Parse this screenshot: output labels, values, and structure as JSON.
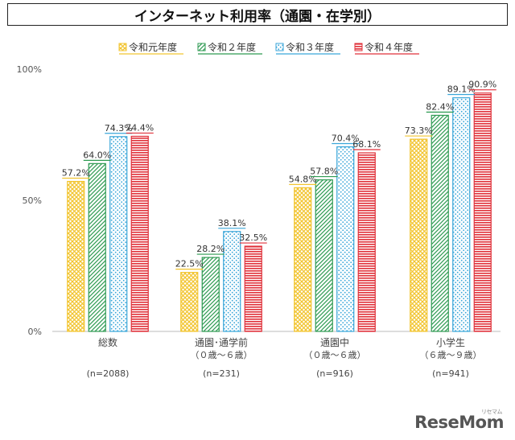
{
  "chart_data": {
    "type": "bar",
    "title": "インターネット利用率（通園・在学別）",
    "categories": [
      {
        "label": "総数",
        "label2": "",
        "n": "(n=2088)"
      },
      {
        "label": "通園･通学前",
        "label2": "（０歳～６歳）",
        "n": "(n=231)"
      },
      {
        "label": "通園中",
        "label2": "（０歳～６歳）",
        "n": "(n=916)"
      },
      {
        "label": "小学生",
        "label2": "（６歳～９歳）",
        "n": "(n=941)"
      }
    ],
    "series": [
      {
        "name": "令和元年度",
        "values": [
          57.2,
          22.5,
          54.8,
          73.3
        ],
        "labels": [
          "57.2%",
          "22.5%",
          "54.8%",
          "73.3%"
        ],
        "color": "#f2c531",
        "pattern": "cross"
      },
      {
        "name": "令和２年度",
        "values": [
          64.0,
          28.2,
          57.8,
          82.4
        ],
        "labels": [
          "64.0%",
          "28.2%",
          "57.8%",
          "82.4%"
        ],
        "color": "#2e9a52",
        "pattern": "diag"
      },
      {
        "name": "令和３年度",
        "values": [
          74.3,
          38.1,
          70.4,
          89.1
        ],
        "labels": [
          "74.3%",
          "38.1%",
          "70.4%",
          "89.1%"
        ],
        "color": "#3aa6d9",
        "pattern": "dots"
      },
      {
        "name": "令和４年度",
        "values": [
          74.4,
          32.5,
          68.1,
          90.9
        ],
        "labels": [
          "74.4%",
          "32.5%",
          "68.1%",
          "90.9%"
        ],
        "color": "#e0313a",
        "pattern": "horiz"
      }
    ],
    "yticks": [
      {
        "value": 0,
        "label": "0%"
      },
      {
        "value": 50,
        "label": "50%"
      },
      {
        "value": 100,
        "label": "100%"
      }
    ],
    "ylim": [
      0,
      100
    ],
    "grid": false,
    "legend": "top"
  },
  "watermark": {
    "main": "ReseMom",
    "small": "リセマム"
  }
}
